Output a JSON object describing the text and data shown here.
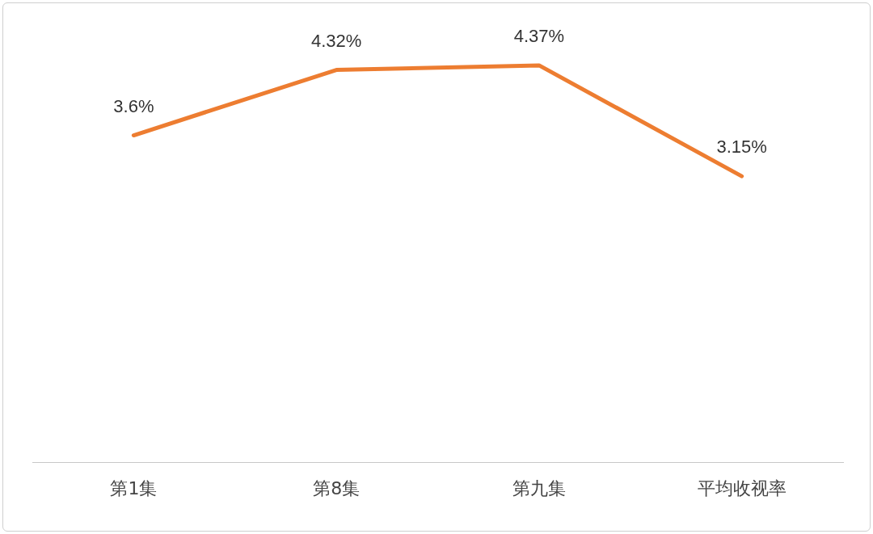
{
  "chart_data": {
    "type": "line",
    "categories": [
      "第1集",
      "第8集",
      "第九集",
      "平均收视率"
    ],
    "values": [
      3.6,
      4.32,
      4.37,
      3.15
    ],
    "value_labels": [
      "3.6%",
      "4.32%",
      "4.37%",
      "3.15%"
    ],
    "color": "#ed7d31"
  }
}
